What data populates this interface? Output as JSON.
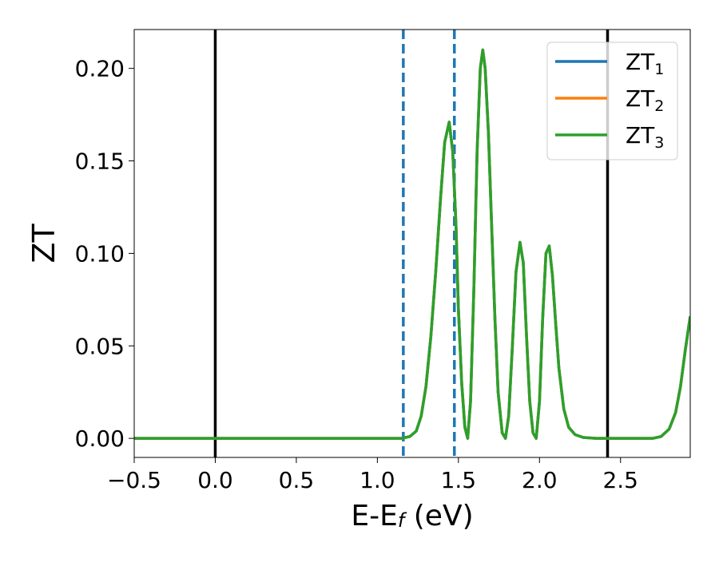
{
  "chart_data": {
    "type": "line",
    "title": "",
    "xlabel": "E-E",
    "xlabel_sub": "f",
    "xlabel_unit": " (eV)",
    "ylabel": "ZT",
    "xlim": [
      -0.5,
      2.93
    ],
    "ylim": [
      -0.0103,
      0.221
    ],
    "grid": false,
    "xticks": [
      -0.5,
      0.0,
      0.5,
      1.0,
      1.5,
      2.0,
      2.5
    ],
    "xtick_labels": [
      "−0.5",
      "0.0",
      "0.5",
      "1.0",
      "1.5",
      "2.0",
      "2.5"
    ],
    "yticks": [
      0.0,
      0.05,
      0.1,
      0.15,
      0.2
    ],
    "ytick_labels": [
      "0.00",
      "0.05",
      "0.10",
      "0.15",
      "0.20"
    ],
    "x": [
      -0.5,
      1.15,
      1.2,
      1.24,
      1.27,
      1.3,
      1.33,
      1.36,
      1.39,
      1.415,
      1.443,
      1.465,
      1.485,
      1.5,
      1.52,
      1.54,
      1.557,
      1.575,
      1.595,
      1.615,
      1.635,
      1.65,
      1.665,
      1.685,
      1.705,
      1.725,
      1.745,
      1.77,
      1.79,
      1.81,
      1.83,
      1.855,
      1.88,
      1.9,
      1.92,
      1.94,
      1.96,
      1.98,
      2.0,
      2.02,
      2.04,
      2.06,
      2.08,
      2.1,
      2.12,
      2.15,
      2.18,
      2.22,
      2.27,
      2.35,
      2.7,
      2.75,
      2.8,
      2.84,
      2.87,
      2.9,
      2.93
    ],
    "y": [
      0,
      0,
      0.001,
      0.004,
      0.012,
      0.028,
      0.055,
      0.09,
      0.13,
      0.16,
      0.171,
      0.155,
      0.115,
      0.07,
      0.03,
      0.006,
      0,
      0.02,
      0.08,
      0.155,
      0.2,
      0.21,
      0.2,
      0.165,
      0.115,
      0.065,
      0.025,
      0.003,
      0,
      0.012,
      0.045,
      0.09,
      0.106,
      0.095,
      0.055,
      0.02,
      0.003,
      0,
      0.02,
      0.065,
      0.1,
      0.104,
      0.088,
      0.062,
      0.038,
      0.016,
      0.006,
      0.002,
      0.0005,
      0,
      0,
      0.001,
      0.005,
      0.014,
      0.028,
      0.048,
      0.066
    ],
    "series": [
      {
        "name": "ZT",
        "sub": "1",
        "color": "#1f77b4"
      },
      {
        "name": "ZT",
        "sub": "2",
        "color": "#ff7f0e"
      },
      {
        "name": "ZT",
        "sub": "3",
        "color": "#2ca02c"
      }
    ],
    "vlines_solid": [
      0.0,
      2.42
    ],
    "vlines_dashed": [
      1.16,
      1.475
    ],
    "dashed_color": "#1f77b4",
    "legend": "top-right"
  }
}
